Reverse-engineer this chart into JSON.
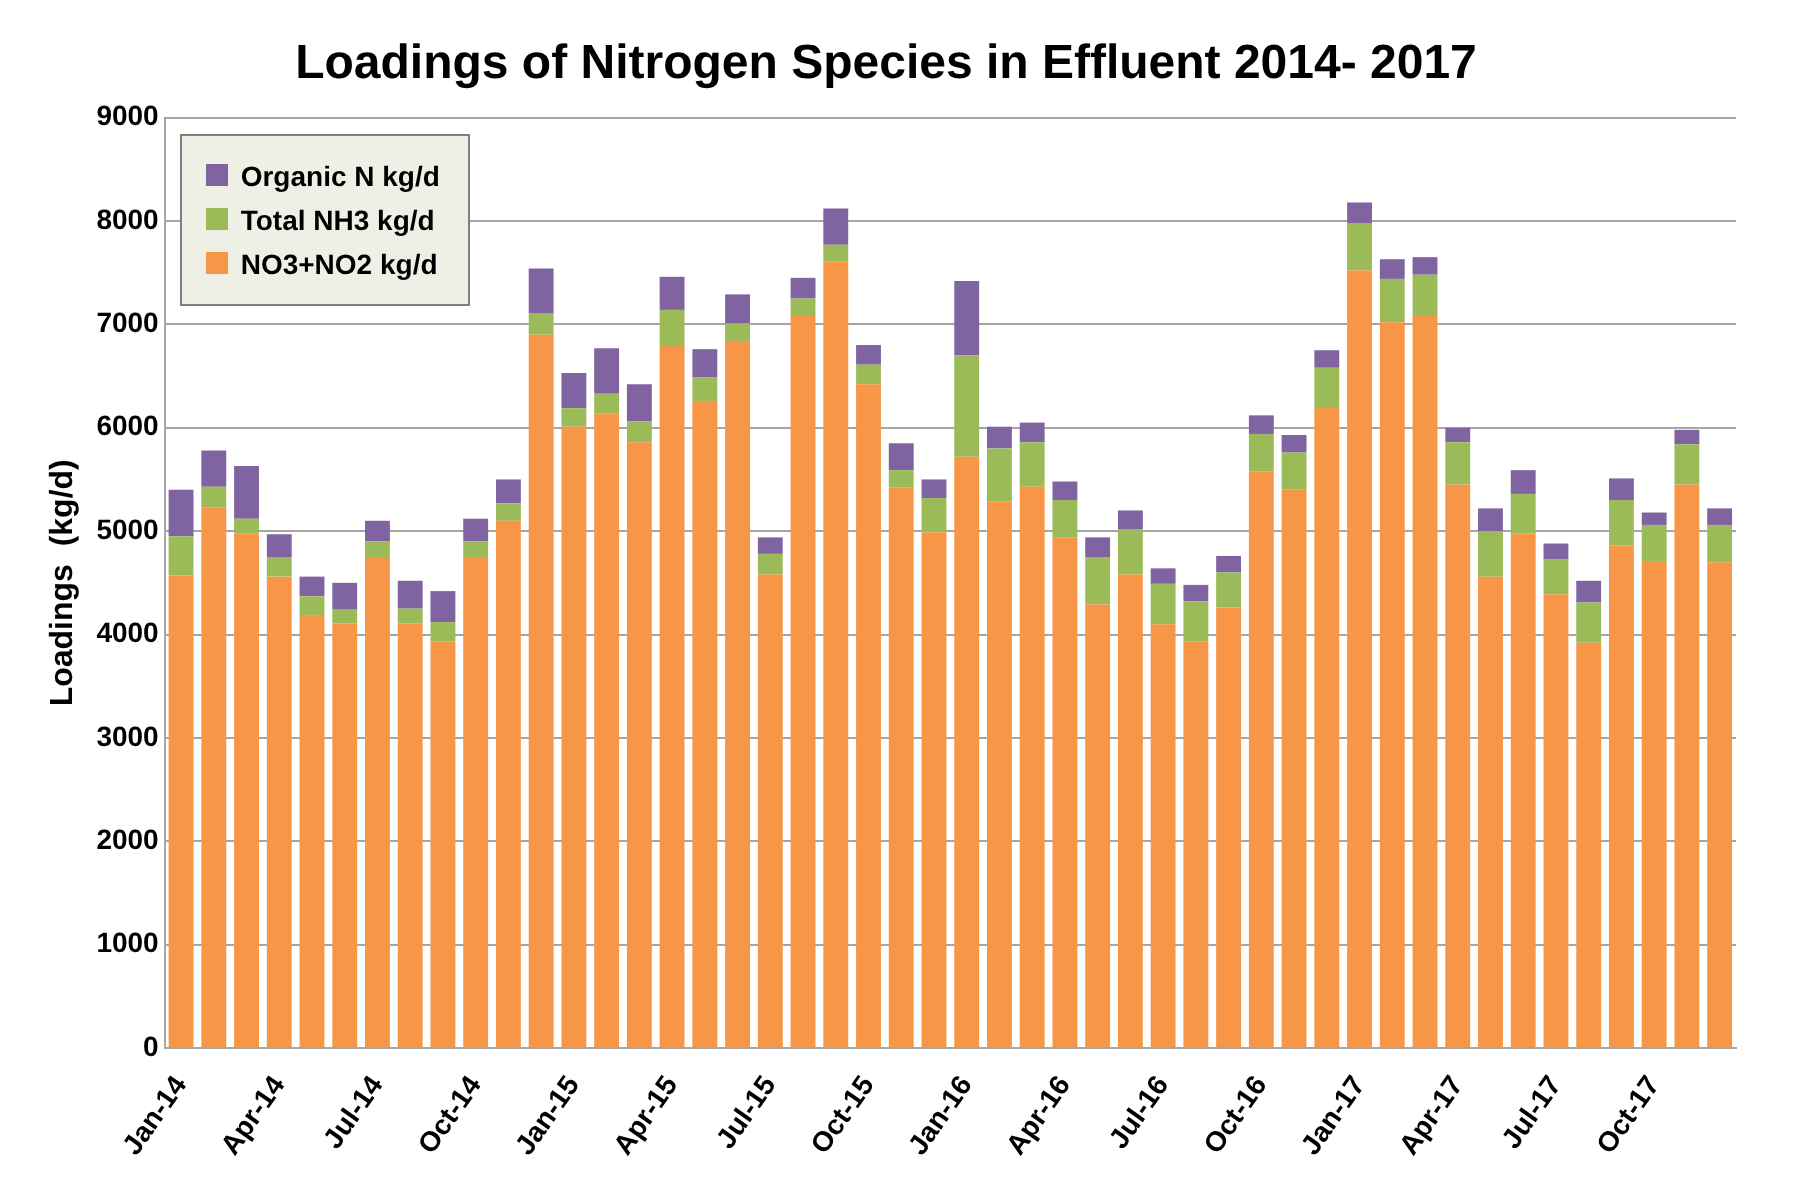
{
  "chart_data": {
    "type": "bar",
    "title": "Loadings of Nitrogen Species in Effluent 2014- 2017",
    "ylabel": "Loadings  (kg/d)",
    "categories": [
      "Jan-14",
      null,
      null,
      "Apr-14",
      null,
      null,
      "Jul-14",
      null,
      null,
      "Oct-14",
      null,
      null,
      "Jan-15",
      null,
      null,
      "Apr-15",
      null,
      null,
      "Jul-15",
      null,
      null,
      "Oct-15",
      null,
      null,
      "Jan-16",
      null,
      null,
      "Apr-16",
      null,
      null,
      "Jul-16",
      null,
      null,
      "Oct-16",
      null,
      null,
      "Jan-17",
      null,
      null,
      "Apr-17",
      null,
      null,
      "Jul-17",
      null,
      null,
      "Oct-17",
      null,
      null
    ],
    "stacked": true,
    "series": [
      {
        "name": "NO3+NO2 kg/d",
        "color": "#f79646",
        "values": [
          4570,
          5230,
          4980,
          4560,
          4180,
          4110,
          4740,
          4110,
          3930,
          4750,
          5100,
          6900,
          6010,
          6140,
          5860,
          6790,
          6250,
          6840,
          4580,
          7080,
          7610,
          6420,
          5420,
          4990,
          5720,
          5290,
          5430,
          4940,
          4290,
          4580,
          4100,
          3930,
          4260,
          5580,
          5400,
          6200,
          7520,
          7020,
          7090,
          5450,
          4560,
          4980,
          4390,
          3920,
          4860,
          4710,
          5450,
          4700
        ]
      },
      {
        "name": "Total NH3 kg/d",
        "color": "#9bbb59",
        "values": [
          380,
          200,
          140,
          190,
          190,
          130,
          160,
          140,
          190,
          150,
          170,
          210,
          180,
          190,
          200,
          350,
          240,
          170,
          200,
          170,
          160,
          190,
          170,
          330,
          980,
          510,
          430,
          360,
          460,
          440,
          390,
          390,
          340,
          360,
          360,
          380,
          460,
          420,
          390,
          410,
          440,
          380,
          340,
          390,
          440,
          350,
          390,
          360
        ]
      },
      {
        "name": "Organic N kg/d",
        "color": "#8064a2",
        "values": [
          450,
          350,
          510,
          220,
          190,
          260,
          200,
          270,
          300,
          220,
          230,
          430,
          340,
          440,
          360,
          320,
          270,
          280,
          160,
          200,
          350,
          190,
          260,
          180,
          720,
          210,
          190,
          180,
          190,
          180,
          150,
          160,
          160,
          180,
          170,
          170,
          200,
          190,
          170,
          140,
          220,
          230,
          150,
          210,
          210,
          120,
          140,
          160
        ]
      }
    ],
    "ylim": [
      0,
      9000
    ],
    "yticks": [
      0,
      1000,
      2000,
      3000,
      4000,
      5000,
      6000,
      7000,
      8000,
      9000
    ],
    "grid": "y",
    "legend": "top left"
  }
}
